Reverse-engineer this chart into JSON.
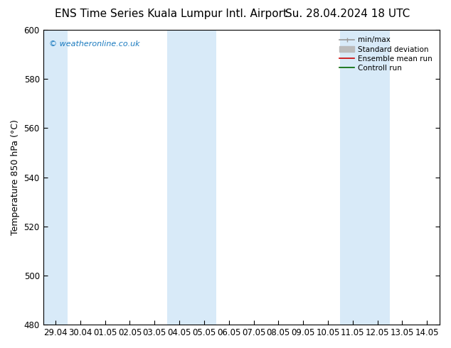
{
  "title_left": "ENS Time Series Kuala Lumpur Intl. Airport",
  "title_right": "Su. 28.04.2024 18 UTC",
  "ylabel": "Temperature 850 hPa (°C)",
  "ylim": [
    480,
    600
  ],
  "yticks": [
    480,
    500,
    520,
    540,
    560,
    580,
    600
  ],
  "x_labels": [
    "29.04",
    "30.04",
    "01.05",
    "02.05",
    "03.05",
    "04.05",
    "05.05",
    "06.05",
    "07.05",
    "08.05",
    "09.05",
    "10.05",
    "11.05",
    "12.05",
    "13.05",
    "14.05"
  ],
  "x_positions": [
    0,
    1,
    2,
    3,
    4,
    5,
    6,
    7,
    8,
    9,
    10,
    11,
    12,
    13,
    14,
    15
  ],
  "xlim": [
    -0.5,
    15.5
  ],
  "shaded_bands": [
    {
      "xmin": -0.5,
      "xmax": 0.5
    },
    {
      "xmin": 4.5,
      "xmax": 6.5
    },
    {
      "xmin": 11.5,
      "xmax": 13.5
    }
  ],
  "shade_color": "#d8eaf8",
  "watermark": "© weatheronline.co.uk",
  "watermark_color": "#1a7abf",
  "bg_color": "#ffffff",
  "plot_bg_color": "#ffffff",
  "legend_items": [
    {
      "label": "min/max",
      "color": "#999999",
      "lw": 1.2
    },
    {
      "label": "Standard deviation",
      "color": "#bbbbbb",
      "lw": 5
    },
    {
      "label": "Ensemble mean run",
      "color": "#cc0000",
      "lw": 1.2
    },
    {
      "label": "Controll run",
      "color": "#006600",
      "lw": 1.2
    }
  ],
  "title_fontsize": 11,
  "tick_fontsize": 8.5,
  "ylabel_fontsize": 9,
  "watermark_fontsize": 8
}
